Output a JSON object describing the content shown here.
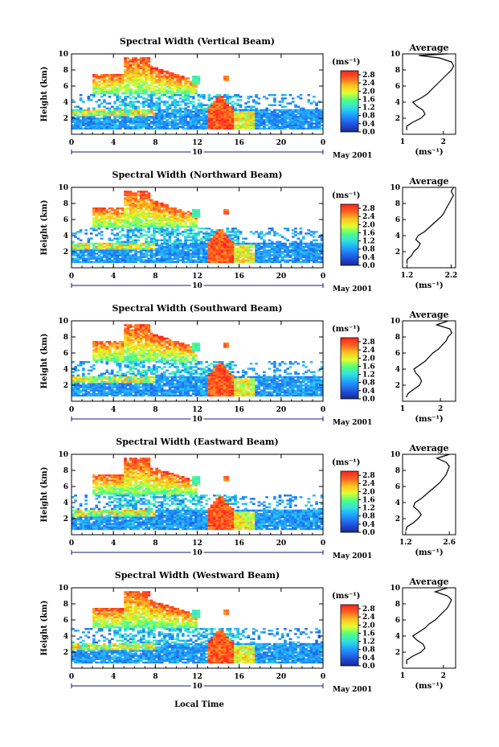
{
  "figure": {
    "date_label": "May 2001",
    "day_label": "10",
    "xlabel": "Local Time",
    "ylabel": "Height (km)",
    "unit": "(ms⁻¹)",
    "avg_title": "Average",
    "avg_xlabel": "(ms⁻¹)"
  },
  "chart_data": [
    {
      "type": "heatmap",
      "title": "Spectral Width (Vertical Beam)",
      "xlim": [
        0,
        24
      ],
      "ylim": [
        0,
        10
      ],
      "xticks": [
        "0",
        "4",
        "8",
        "12",
        "16",
        "20",
        "0"
      ],
      "yticks": [
        "2",
        "4",
        "6",
        "8",
        "10"
      ],
      "colorbar": {
        "ticks": [
          "0.0",
          "0.4",
          "0.8",
          "1.2",
          "1.6",
          "2.0",
          "2.4",
          "2.8"
        ],
        "range": [
          0,
          3.0
        ]
      },
      "average": {
        "xticks": [
          "1",
          "2"
        ],
        "xlim": [
          1,
          2.3
        ],
        "profile": [
          [
            0.5,
            1.1
          ],
          [
            1,
            1.1
          ],
          [
            1.5,
            1.25
          ],
          [
            2,
            1.45
          ],
          [
            2.5,
            1.55
          ],
          [
            3,
            1.5
          ],
          [
            3.5,
            1.35
          ],
          [
            4,
            1.25
          ],
          [
            4.5,
            1.45
          ],
          [
            5,
            1.6
          ],
          [
            5.5,
            1.7
          ],
          [
            6,
            1.8
          ],
          [
            6.5,
            1.9
          ],
          [
            7,
            2.0
          ],
          [
            7.5,
            2.1
          ],
          [
            8,
            2.2
          ],
          [
            8.5,
            2.25
          ],
          [
            9,
            2.2
          ],
          [
            9.5,
            1.9
          ],
          [
            9.8,
            1.4
          ],
          [
            10,
            2.1
          ]
        ]
      }
    },
    {
      "type": "heatmap",
      "title": "Spectral Width (Northward Beam)",
      "xlim": [
        0,
        24
      ],
      "ylim": [
        0,
        10
      ],
      "xticks": [
        "0",
        "4",
        "8",
        "12",
        "16",
        "20",
        "0"
      ],
      "yticks": [
        "2",
        "4",
        "6",
        "8",
        "10"
      ],
      "colorbar": {
        "ticks": [
          "0.0",
          "0.4",
          "0.8",
          "1.2",
          "1.6",
          "2.0",
          "2.4",
          "2.8"
        ],
        "range": [
          0,
          3.0
        ]
      },
      "average": {
        "xticks": [
          "1.2",
          "2.2"
        ],
        "xlim": [
          1.1,
          2.3
        ],
        "profile": [
          [
            0.5,
            1.2
          ],
          [
            1,
            1.2
          ],
          [
            1.5,
            1.3
          ],
          [
            2,
            1.35
          ],
          [
            2.5,
            1.45
          ],
          [
            3,
            1.5
          ],
          [
            3.5,
            1.4
          ],
          [
            4,
            1.45
          ],
          [
            4.5,
            1.6
          ],
          [
            5,
            1.7
          ],
          [
            5.5,
            1.8
          ],
          [
            6,
            1.9
          ],
          [
            6.5,
            2.0
          ],
          [
            7,
            2.05
          ],
          [
            7.5,
            2.1
          ],
          [
            8,
            2.15
          ],
          [
            8.5,
            2.2
          ],
          [
            9,
            2.25
          ],
          [
            9.5,
            2.2
          ],
          [
            10,
            2.25
          ]
        ]
      }
    },
    {
      "type": "heatmap",
      "title": "Spectral Width (Southward Beam)",
      "xlim": [
        0,
        24
      ],
      "ylim": [
        0,
        10
      ],
      "xticks": [
        "0",
        "4",
        "8",
        "12",
        "16",
        "20",
        "0"
      ],
      "yticks": [
        "2",
        "4",
        "6",
        "8",
        "10"
      ],
      "colorbar": {
        "ticks": [
          "0.0",
          "0.4",
          "0.8",
          "1.2",
          "1.6",
          "2.0",
          "2.4",
          "2.8"
        ],
        "range": [
          0,
          3.0
        ]
      },
      "average": {
        "xticks": [
          "1",
          "2"
        ],
        "xlim": [
          1,
          2.4
        ],
        "profile": [
          [
            0.5,
            1.1
          ],
          [
            1,
            1.15
          ],
          [
            1.5,
            1.3
          ],
          [
            2,
            1.45
          ],
          [
            2.5,
            1.5
          ],
          [
            3,
            1.45
          ],
          [
            3.5,
            1.35
          ],
          [
            4,
            1.3
          ],
          [
            4.5,
            1.45
          ],
          [
            5,
            1.6
          ],
          [
            5.5,
            1.7
          ],
          [
            6,
            1.8
          ],
          [
            6.5,
            1.95
          ],
          [
            7,
            2.05
          ],
          [
            7.5,
            2.15
          ],
          [
            8,
            2.2
          ],
          [
            8.5,
            2.3
          ],
          [
            9,
            2.25
          ],
          [
            9.5,
            1.9
          ],
          [
            10,
            2.2
          ]
        ]
      }
    },
    {
      "type": "heatmap",
      "title": "Spectral Width (Eastward Beam)",
      "xlim": [
        0,
        24
      ],
      "ylim": [
        0,
        10
      ],
      "xticks": [
        "0",
        "4",
        "8",
        "12",
        "16",
        "20",
        "0"
      ],
      "yticks": [
        "2",
        "4",
        "6",
        "8",
        "10"
      ],
      "colorbar": {
        "ticks": [
          "0.0",
          "0.4",
          "0.8",
          "1.2",
          "1.6",
          "2.0",
          "2.4",
          "2.8"
        ],
        "range": [
          0,
          3.0
        ]
      },
      "average": {
        "xticks": [
          "1.2",
          "2.6"
        ],
        "xlim": [
          1.1,
          2.8
        ],
        "profile": [
          [
            0.5,
            1.2
          ],
          [
            1,
            1.25
          ],
          [
            1.5,
            1.45
          ],
          [
            2,
            1.6
          ],
          [
            2.5,
            1.7
          ],
          [
            3,
            1.6
          ],
          [
            3.5,
            1.45
          ],
          [
            4,
            1.5
          ],
          [
            4.5,
            1.7
          ],
          [
            5,
            1.85
          ],
          [
            5.5,
            2.0
          ],
          [
            6,
            2.15
          ],
          [
            6.5,
            2.3
          ],
          [
            7,
            2.4
          ],
          [
            7.5,
            2.5
          ],
          [
            8,
            2.55
          ],
          [
            8.5,
            2.6
          ],
          [
            9,
            2.5
          ],
          [
            9.5,
            2.2
          ],
          [
            10,
            2.6
          ]
        ]
      }
    },
    {
      "type": "heatmap",
      "title": "Spectral Width (Westward Beam)",
      "xlim": [
        0,
        24
      ],
      "ylim": [
        0,
        10
      ],
      "xticks": [
        "0",
        "4",
        "8",
        "12",
        "16",
        "20",
        "0"
      ],
      "yticks": [
        "2",
        "4",
        "6",
        "8",
        "10"
      ],
      "colorbar": {
        "ticks": [
          "0.0",
          "0.4",
          "0.8",
          "1.2",
          "1.6",
          "2.0",
          "2.4",
          "2.8"
        ],
        "range": [
          0,
          3.0
        ]
      },
      "average": {
        "xticks": [
          "1",
          "2"
        ],
        "xlim": [
          1,
          2.3
        ],
        "profile": [
          [
            0.5,
            1.1
          ],
          [
            1,
            1.1
          ],
          [
            1.5,
            1.25
          ],
          [
            2,
            1.45
          ],
          [
            2.5,
            1.55
          ],
          [
            3,
            1.5
          ],
          [
            3.5,
            1.35
          ],
          [
            4,
            1.25
          ],
          [
            4.5,
            1.4
          ],
          [
            5,
            1.55
          ],
          [
            5.5,
            1.65
          ],
          [
            6,
            1.8
          ],
          [
            6.5,
            1.9
          ],
          [
            7,
            2.0
          ],
          [
            7.5,
            2.1
          ],
          [
            8,
            2.15
          ],
          [
            8.5,
            2.2
          ],
          [
            9,
            2.1
          ],
          [
            9.5,
            1.8
          ],
          [
            10,
            2.1
          ]
        ]
      }
    }
  ]
}
